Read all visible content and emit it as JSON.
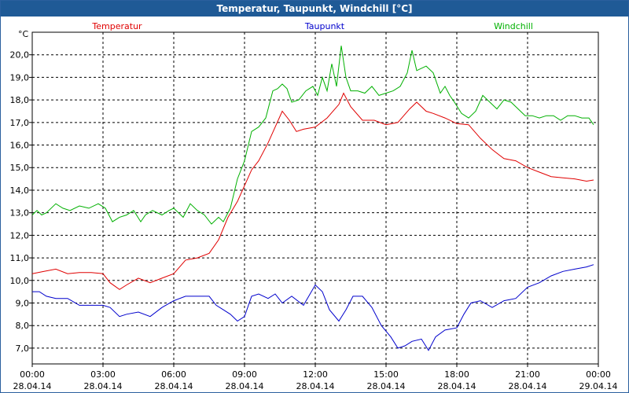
{
  "window": {
    "title": "Temperatur, Taupunkt, Windchill [°C]"
  },
  "chart_data": {
    "type": "line",
    "title": "Temperatur, Taupunkt, Windchill [°C]",
    "ylabel": "°C",
    "ylim": [
      6.3,
      21.0
    ],
    "yticks": [
      "7,0",
      "8,0",
      "9,0",
      "10,0",
      "11,0",
      "12,0",
      "13,0",
      "14,0",
      "15,0",
      "16,0",
      "17,0",
      "18,0",
      "19,0",
      "20,0"
    ],
    "xlim": [
      0,
      24
    ],
    "xticks": [
      {
        "time": "00:00",
        "date": "28.04.14"
      },
      {
        "time": "03:00",
        "date": "28.04.14"
      },
      {
        "time": "06:00",
        "date": "28.04.14"
      },
      {
        "time": "09:00",
        "date": "28.04.14"
      },
      {
        "time": "12:00",
        "date": "28.04.14"
      },
      {
        "time": "15:00",
        "date": "28.04.14"
      },
      {
        "time": "18:00",
        "date": "28.04.14"
      },
      {
        "time": "21:00",
        "date": "28.04.14"
      },
      {
        "time": "00:00",
        "date": "29.04.14"
      }
    ],
    "grid": true,
    "legend_position": "top",
    "series": [
      {
        "name": "Temperatur",
        "color": "#e00000",
        "x": [
          0,
          0.5,
          1,
          1.5,
          2,
          2.5,
          3,
          3.3,
          3.7,
          4,
          4.5,
          5,
          5.5,
          6,
          6.5,
          7,
          7.5,
          7.9,
          8.3,
          8.7,
          9,
          9.3,
          9.6,
          10,
          10.3,
          10.6,
          10.9,
          11.2,
          11.5,
          12,
          12.5,
          13,
          13.2,
          13.5,
          14,
          14.5,
          15,
          15.5,
          16,
          16.3,
          16.7,
          17,
          17.5,
          18,
          18.5,
          19,
          19.5,
          20,
          20.5,
          21,
          21.5,
          22,
          22.5,
          23,
          23.5,
          23.8
        ],
        "values": [
          10.3,
          10.4,
          10.5,
          10.3,
          10.35,
          10.35,
          10.3,
          9.9,
          9.6,
          9.8,
          10.1,
          9.9,
          10.1,
          10.3,
          10.9,
          11.0,
          11.2,
          11.8,
          12.8,
          13.5,
          14.2,
          14.9,
          15.3,
          16.1,
          16.8,
          17.5,
          17.1,
          16.6,
          16.7,
          16.8,
          17.2,
          17.8,
          18.3,
          17.7,
          17.1,
          17.1,
          16.9,
          17.0,
          17.6,
          17.9,
          17.5,
          17.4,
          17.2,
          16.95,
          16.9,
          16.3,
          15.8,
          15.4,
          15.3,
          15.0,
          14.8,
          14.6,
          14.55,
          14.5,
          14.4,
          14.45
        ]
      },
      {
        "name": "Taupunkt",
        "color": "#0000cc",
        "x": [
          0,
          0.3,
          0.6,
          1,
          1.5,
          2,
          2.5,
          3,
          3.3,
          3.7,
          4,
          4.5,
          5,
          5.5,
          6,
          6.5,
          7,
          7.5,
          7.8,
          8.1,
          8.4,
          8.7,
          9,
          9.3,
          9.6,
          10,
          10.3,
          10.6,
          11,
          11.5,
          12,
          12.3,
          12.6,
          13,
          13.3,
          13.6,
          14,
          14.4,
          14.8,
          15.2,
          15.5,
          15.8,
          16.1,
          16.5,
          16.8,
          17.1,
          17.5,
          18,
          18.3,
          18.6,
          19,
          19.5,
          20,
          20.5,
          21,
          21.5,
          22,
          22.5,
          23,
          23.5,
          23.8
        ],
        "values": [
          9.5,
          9.5,
          9.3,
          9.2,
          9.2,
          8.9,
          8.9,
          8.9,
          8.8,
          8.4,
          8.5,
          8.6,
          8.4,
          8.8,
          9.1,
          9.3,
          9.3,
          9.3,
          8.9,
          8.7,
          8.5,
          8.2,
          8.4,
          9.3,
          9.4,
          9.2,
          9.4,
          9.0,
          9.3,
          8.9,
          9.8,
          9.5,
          8.7,
          8.2,
          8.7,
          9.3,
          9.3,
          8.8,
          8.0,
          7.5,
          7.0,
          7.1,
          7.3,
          7.4,
          6.9,
          7.5,
          7.8,
          7.9,
          8.5,
          9.0,
          9.1,
          8.8,
          9.1,
          9.2,
          9.7,
          9.9,
          10.2,
          10.4,
          10.5,
          10.6,
          10.7
        ]
      },
      {
        "name": "Windchill",
        "color": "#00b000",
        "x": [
          0,
          0.2,
          0.4,
          0.6,
          1,
          1.3,
          1.6,
          2,
          2.4,
          2.8,
          3.1,
          3.4,
          3.7,
          4,
          4.3,
          4.6,
          4.8,
          5.1,
          5.5,
          5.8,
          6,
          6.2,
          6.4,
          6.7,
          7,
          7.3,
          7.6,
          7.9,
          8.1,
          8.4,
          8.7,
          9,
          9.3,
          9.6,
          9.9,
          10.2,
          10.4,
          10.6,
          10.8,
          11,
          11.3,
          11.6,
          11.9,
          12.1,
          12.3,
          12.5,
          12.7,
          12.9,
          13.1,
          13.3,
          13.5,
          13.8,
          14.1,
          14.4,
          14.7,
          15,
          15.3,
          15.6,
          15.9,
          16.1,
          16.3,
          16.5,
          16.7,
          17,
          17.3,
          17.5,
          17.7,
          17.9,
          18.2,
          18.5,
          18.8,
          19.1,
          19.4,
          19.7,
          20,
          20.3,
          20.6,
          20.9,
          21.2,
          21.5,
          21.8,
          22.1,
          22.4,
          22.7,
          23,
          23.3,
          23.6,
          23.8
        ],
        "values": [
          12.9,
          13.1,
          12.9,
          13.0,
          13.4,
          13.2,
          13.1,
          13.3,
          13.2,
          13.4,
          13.2,
          12.6,
          12.8,
          12.9,
          13.1,
          12.6,
          12.9,
          13.1,
          12.9,
          13.1,
          13.2,
          13.0,
          12.8,
          13.4,
          13.1,
          12.9,
          12.5,
          12.8,
          12.6,
          13.2,
          14.5,
          15.3,
          16.6,
          16.8,
          17.2,
          18.4,
          18.5,
          18.7,
          18.5,
          17.9,
          18.0,
          18.4,
          18.6,
          18.2,
          19.0,
          18.4,
          19.6,
          18.6,
          20.4,
          19.0,
          18.4,
          18.4,
          18.3,
          18.6,
          18.2,
          18.3,
          18.4,
          18.6,
          19.2,
          20.2,
          19.3,
          19.4,
          19.5,
          19.2,
          18.3,
          18.6,
          18.2,
          17.9,
          17.4,
          17.2,
          17.5,
          18.2,
          17.9,
          17.6,
          18.0,
          17.9,
          17.6,
          17.3,
          17.3,
          17.2,
          17.3,
          17.3,
          17.1,
          17.3,
          17.3,
          17.2,
          17.2,
          16.9
        ]
      }
    ]
  }
}
